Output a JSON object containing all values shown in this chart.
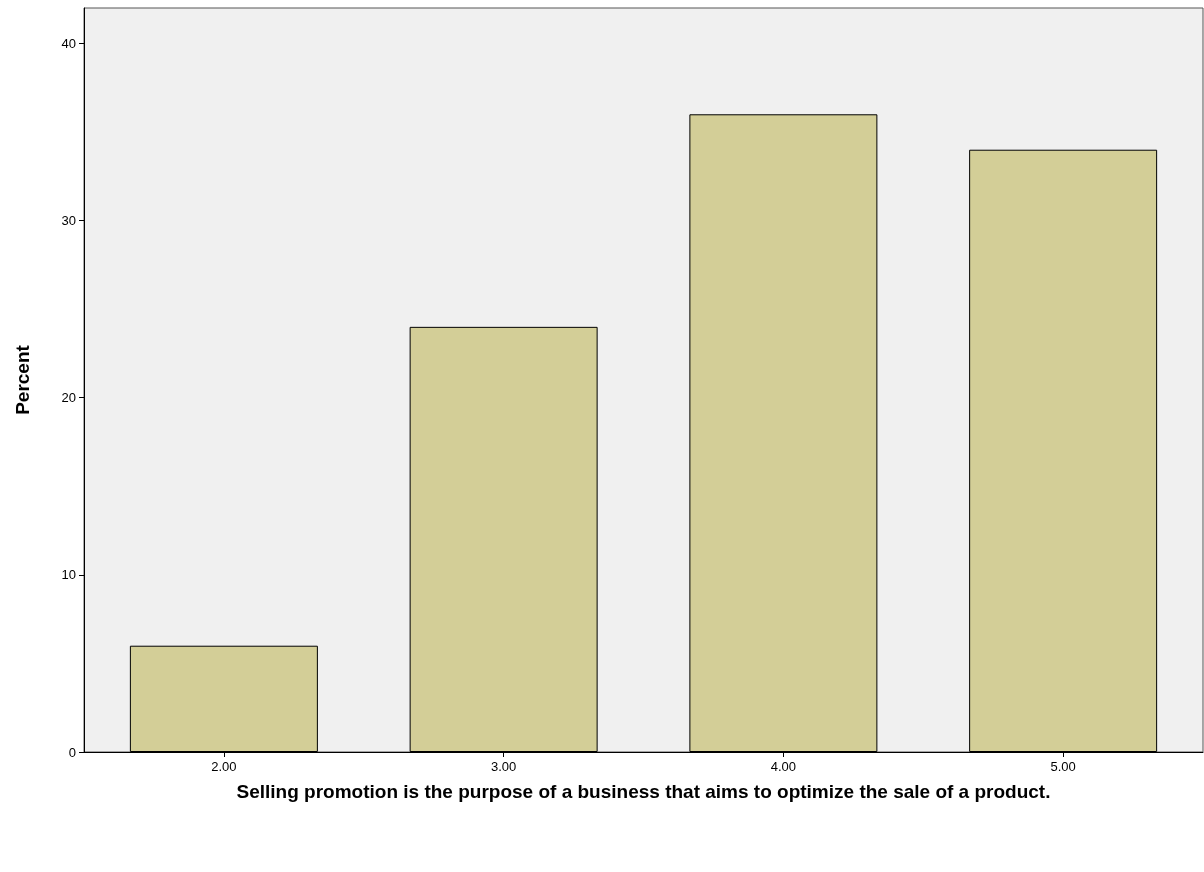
{
  "chart_data": {
    "type": "bar",
    "xlabel": "Selling promotion is the purpose of a business that aims to optimize the sale of a product.",
    "ylabel": "Percent",
    "categories": [
      "2.00",
      "3.00",
      "4.00",
      "5.00"
    ],
    "values": [
      6,
      24,
      36,
      34
    ],
    "color": "#d3ce97",
    "ylim": [
      0,
      42
    ],
    "yticks": [
      0,
      10,
      20,
      30,
      40
    ],
    "grid": false
  }
}
